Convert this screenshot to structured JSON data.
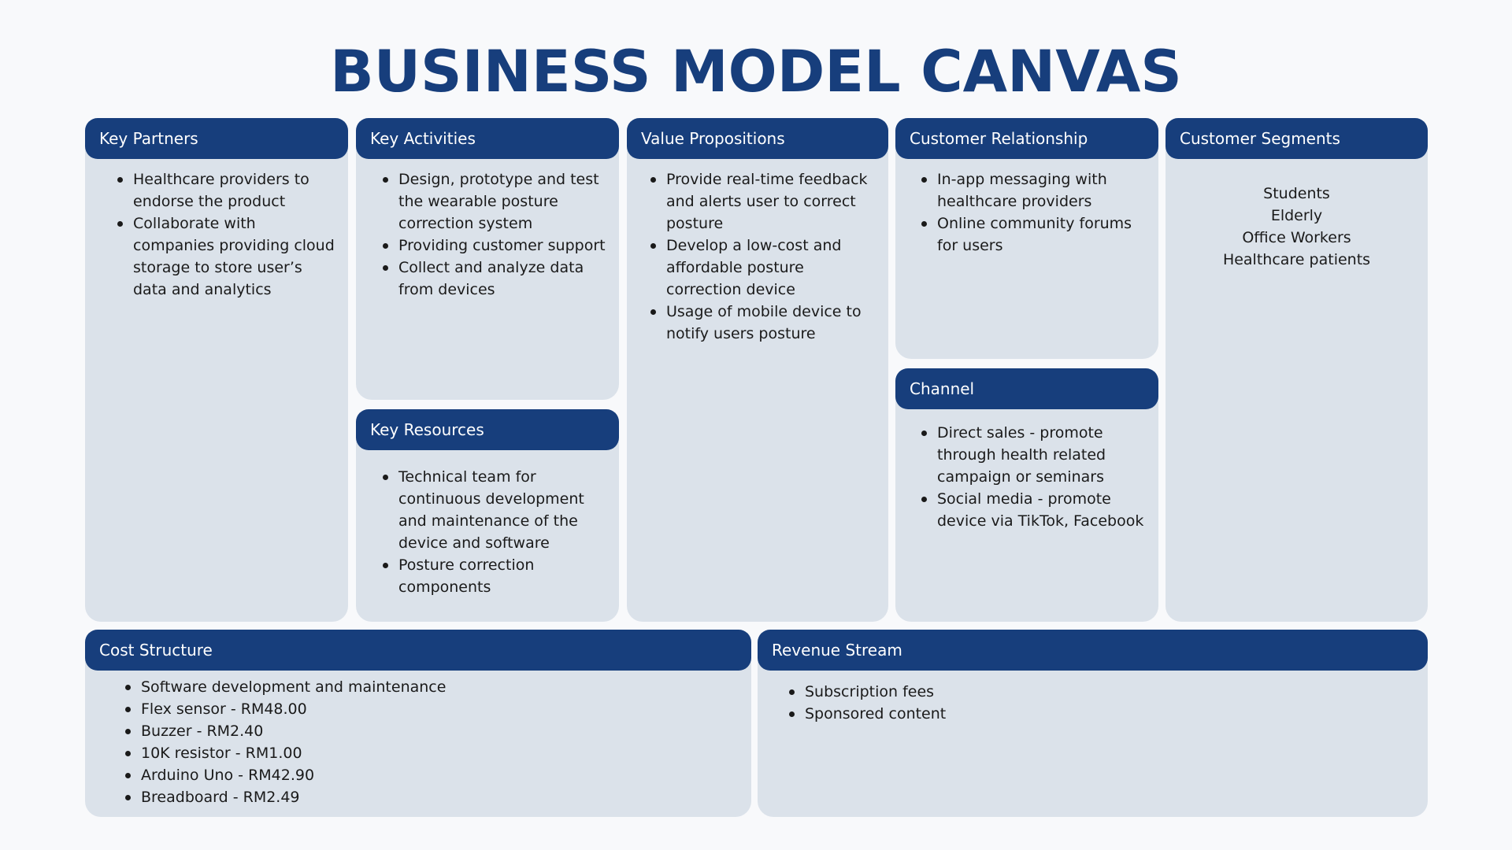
{
  "title": "BUSINESS MODEL CANVAS",
  "colors": {
    "header": "#173e7c",
    "panel": "#dbe2ea",
    "background": "#f8f9fb",
    "text": "#1a1a1a"
  },
  "key_partners": {
    "heading": "Key Partners",
    "items": [
      "Healthcare providers to endorse the product",
      "Collaborate with companies providing cloud storage to store user’s data and analytics"
    ]
  },
  "key_activities": {
    "heading": "Key Activities",
    "items": [
      "Design, prototype and test the wearable posture correction system",
      "Providing customer support",
      "Collect and analyze data from devices"
    ]
  },
  "key_resources": {
    "heading": "Key Resources",
    "items": [
      "Technical team for continuous development and maintenance of the device and software",
      "Posture correction components"
    ]
  },
  "value_propositions": {
    "heading": "Value Propositions",
    "items": [
      "Provide real-time feedback and alerts user to correct posture",
      "Develop a low-cost and affordable posture correction device",
      "Usage of mobile device to notify users posture"
    ]
  },
  "customer_relationship": {
    "heading": "Customer Relationship",
    "items": [
      "In-app messaging with healthcare providers",
      "Online community forums for users"
    ]
  },
  "channel": {
    "heading": "Channel",
    "items": [
      "Direct sales - promote through health related campaign or seminars",
      "Social media - promote device via TikTok, Facebook"
    ]
  },
  "customer_segments": {
    "heading": "Customer Segments",
    "items": [
      "Students",
      "Elderly",
      "Office Workers",
      "Healthcare patients"
    ]
  },
  "cost_structure": {
    "heading": "Cost Structure",
    "items": [
      "Software development and maintenance",
      "Flex sensor - RM48.00",
      "Buzzer - RM2.40",
      "10K resistor - RM1.00",
      "Arduino Uno - RM42.90",
      "Breadboard - RM2.49"
    ]
  },
  "revenue_stream": {
    "heading": "Revenue Stream",
    "items": [
      "Subscription fees",
      "Sponsored content"
    ]
  }
}
